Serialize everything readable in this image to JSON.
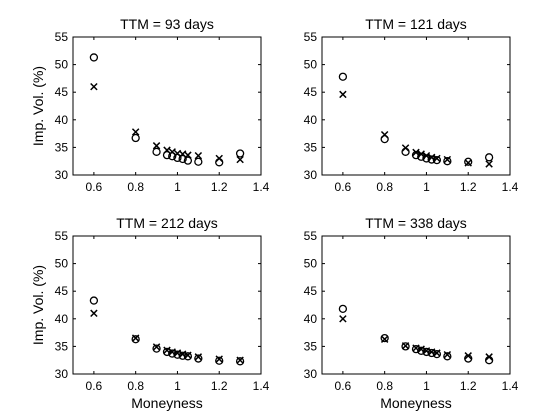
{
  "chart_data": [
    {
      "type": "scatter",
      "title": "TTM = 93 days",
      "xlabel": "",
      "ylabel": "Imp. Vol. (%)",
      "xlim": [
        0.5,
        1.4
      ],
      "ylim": [
        30,
        55
      ],
      "xticks": [
        "0.6",
        "0.8",
        "1",
        "1.2",
        "1.4"
      ],
      "yticks": [
        "30",
        "35",
        "40",
        "45",
        "50",
        "55"
      ],
      "series": [
        {
          "marker": "circle",
          "x": [
            0.6,
            0.8,
            0.9,
            0.95,
            0.975,
            1.0,
            1.025,
            1.05,
            1.1,
            1.2,
            1.3
          ],
          "y": [
            51.3,
            36.7,
            34.2,
            33.6,
            33.4,
            33.1,
            32.9,
            32.6,
            32.4,
            32.3,
            33.9
          ]
        },
        {
          "marker": "cross",
          "x": [
            0.6,
            0.8,
            0.9,
            0.95,
            0.975,
            1.0,
            1.025,
            1.05,
            1.1,
            1.2,
            1.3
          ],
          "y": [
            46.0,
            37.8,
            35.3,
            34.5,
            34.2,
            33.9,
            33.8,
            33.6,
            33.5,
            33.0,
            32.8
          ]
        }
      ]
    },
    {
      "type": "scatter",
      "title": "TTM = 121 days",
      "xlabel": "",
      "ylabel": "",
      "xlim": [
        0.5,
        1.4
      ],
      "ylim": [
        30,
        55
      ],
      "xticks": [
        "0.6",
        "0.8",
        "1",
        "1.2",
        "1.4"
      ],
      "yticks": [
        "30",
        "35",
        "40",
        "45",
        "50",
        "55"
      ],
      "series": [
        {
          "marker": "circle",
          "x": [
            0.6,
            0.8,
            0.9,
            0.95,
            0.975,
            1.0,
            1.025,
            1.05,
            1.1,
            1.2,
            1.3
          ],
          "y": [
            47.8,
            36.5,
            34.2,
            33.6,
            33.3,
            33.0,
            32.8,
            32.7,
            32.5,
            32.4,
            33.2
          ]
        },
        {
          "marker": "cross",
          "x": [
            0.6,
            0.8,
            0.9,
            0.95,
            0.975,
            1.0,
            1.025,
            1.05,
            1.1,
            1.2,
            1.3
          ],
          "y": [
            44.6,
            37.3,
            34.9,
            34.1,
            33.8,
            33.5,
            33.2,
            33.0,
            32.8,
            32.2,
            32.0
          ]
        }
      ]
    },
    {
      "type": "scatter",
      "title": "TTM = 212 days",
      "xlabel": "Moneyness",
      "ylabel": "Imp. Vol. (%)",
      "xlim": [
        0.5,
        1.4
      ],
      "ylim": [
        30,
        55
      ],
      "xticks": [
        "0.6",
        "0.8",
        "1",
        "1.2",
        "1.4"
      ],
      "yticks": [
        "30",
        "35",
        "40",
        "45",
        "50",
        "55"
      ],
      "series": [
        {
          "marker": "circle",
          "x": [
            0.6,
            0.8,
            0.9,
            0.95,
            0.975,
            1.0,
            1.025,
            1.05,
            1.1,
            1.2,
            1.3
          ],
          "y": [
            43.3,
            36.3,
            34.6,
            34.0,
            33.7,
            33.5,
            33.3,
            33.2,
            32.8,
            32.4,
            32.3
          ]
        },
        {
          "marker": "cross",
          "x": [
            0.6,
            0.8,
            0.9,
            0.95,
            0.975,
            1.0,
            1.025,
            1.05,
            1.1,
            1.2,
            1.3
          ],
          "y": [
            41.0,
            36.5,
            34.9,
            34.3,
            34.0,
            33.8,
            33.6,
            33.4,
            33.1,
            32.7,
            32.5
          ]
        }
      ]
    },
    {
      "type": "scatter",
      "title": "TTM = 338 days",
      "xlabel": "Moneyness",
      "ylabel": "",
      "xlim": [
        0.5,
        1.4
      ],
      "ylim": [
        30,
        55
      ],
      "xticks": [
        "0.6",
        "0.8",
        "1",
        "1.2",
        "1.4"
      ],
      "yticks": [
        "30",
        "35",
        "40",
        "45",
        "50",
        "55"
      ],
      "series": [
        {
          "marker": "circle",
          "x": [
            0.6,
            0.8,
            0.9,
            0.95,
            0.975,
            1.0,
            1.025,
            1.05,
            1.1,
            1.2,
            1.3
          ],
          "y": [
            41.8,
            36.5,
            35.0,
            34.5,
            34.2,
            34.0,
            33.8,
            33.6,
            33.2,
            32.8,
            32.5
          ]
        },
        {
          "marker": "cross",
          "x": [
            0.6,
            0.8,
            0.9,
            0.95,
            0.975,
            1.0,
            1.025,
            1.05,
            1.1,
            1.2,
            1.3
          ],
          "y": [
            40.0,
            36.3,
            35.1,
            34.7,
            34.5,
            34.2,
            34.0,
            33.8,
            33.5,
            33.3,
            33.1
          ]
        }
      ]
    }
  ]
}
